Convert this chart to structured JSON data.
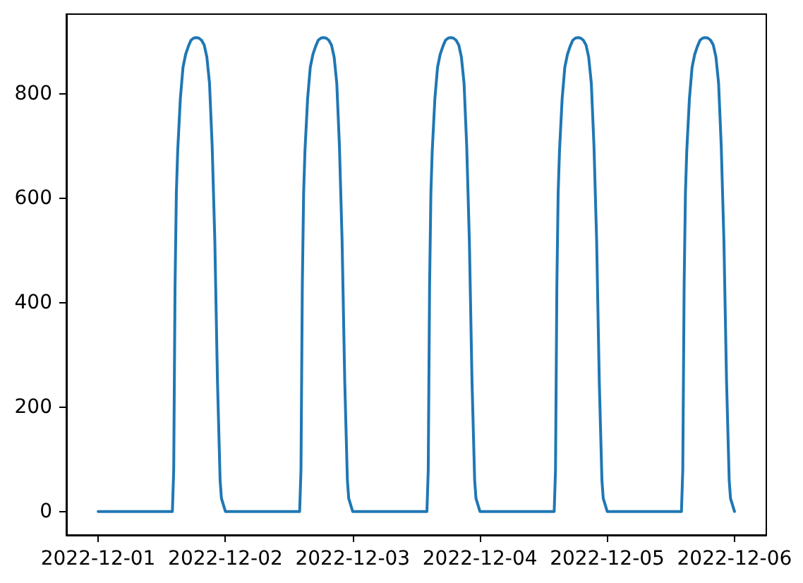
{
  "chart_data": {
    "type": "line",
    "color": "#1f77b4",
    "x": [
      "2022-12-01T00:00",
      "2022-12-01T14:00",
      "2022-12-01T14:15",
      "2022-12-01T14:30",
      "2022-12-01T14:45",
      "2022-12-01T15:00",
      "2022-12-01T15:30",
      "2022-12-01T16:00",
      "2022-12-01T16:30",
      "2022-12-01T17:00",
      "2022-12-01T17:30",
      "2022-12-01T18:00",
      "2022-12-01T18:30",
      "2022-12-01T19:00",
      "2022-12-01T19:30",
      "2022-12-01T20:00",
      "2022-12-01T20:30",
      "2022-12-01T21:00",
      "2022-12-01T21:30",
      "2022-12-01T22:00",
      "2022-12-01T22:30",
      "2022-12-01T23:00",
      "2022-12-01T23:15",
      "2022-12-02T00:00",
      "2022-12-02T14:00",
      "2022-12-02T14:15",
      "2022-12-02T14:30",
      "2022-12-02T14:45",
      "2022-12-02T15:00",
      "2022-12-02T15:30",
      "2022-12-02T16:00",
      "2022-12-02T16:30",
      "2022-12-02T17:00",
      "2022-12-02T17:30",
      "2022-12-02T18:00",
      "2022-12-02T18:30",
      "2022-12-02T19:00",
      "2022-12-02T19:30",
      "2022-12-02T20:00",
      "2022-12-02T20:30",
      "2022-12-02T21:00",
      "2022-12-02T21:30",
      "2022-12-02T22:00",
      "2022-12-02T22:30",
      "2022-12-02T23:00",
      "2022-12-02T23:15",
      "2022-12-03T00:00",
      "2022-12-03T14:00",
      "2022-12-03T14:15",
      "2022-12-03T14:30",
      "2022-12-03T14:45",
      "2022-12-03T15:00",
      "2022-12-03T15:30",
      "2022-12-03T16:00",
      "2022-12-03T16:30",
      "2022-12-03T17:00",
      "2022-12-03T17:30",
      "2022-12-03T18:00",
      "2022-12-03T18:30",
      "2022-12-03T19:00",
      "2022-12-03T19:30",
      "2022-12-03T20:00",
      "2022-12-03T20:30",
      "2022-12-03T21:00",
      "2022-12-03T21:30",
      "2022-12-03T22:00",
      "2022-12-03T22:30",
      "2022-12-03T23:00",
      "2022-12-03T23:15",
      "2022-12-04T00:00",
      "2022-12-04T14:00",
      "2022-12-04T14:15",
      "2022-12-04T14:30",
      "2022-12-04T14:45",
      "2022-12-04T15:00",
      "2022-12-04T15:30",
      "2022-12-04T16:00",
      "2022-12-04T16:30",
      "2022-12-04T17:00",
      "2022-12-04T17:30",
      "2022-12-04T18:00",
      "2022-12-04T18:30",
      "2022-12-04T19:00",
      "2022-12-04T19:30",
      "2022-12-04T20:00",
      "2022-12-04T20:30",
      "2022-12-04T21:00",
      "2022-12-04T21:30",
      "2022-12-04T22:00",
      "2022-12-04T22:30",
      "2022-12-04T23:00",
      "2022-12-04T23:15",
      "2022-12-05T00:00",
      "2022-12-05T14:00",
      "2022-12-05T14:15",
      "2022-12-05T14:30",
      "2022-12-05T14:45",
      "2022-12-05T15:00",
      "2022-12-05T15:30",
      "2022-12-05T16:00",
      "2022-12-05T16:30",
      "2022-12-05T17:00",
      "2022-12-05T17:30",
      "2022-12-05T18:00",
      "2022-12-05T18:30",
      "2022-12-05T19:00",
      "2022-12-05T19:30",
      "2022-12-05T20:00",
      "2022-12-05T20:30",
      "2022-12-05T21:00",
      "2022-12-05T21:30",
      "2022-12-05T22:00",
      "2022-12-05T22:30",
      "2022-12-05T23:00",
      "2022-12-05T23:15",
      "2022-12-06T00:00"
    ],
    "values": [
      0,
      0,
      80,
      430,
      610,
      690,
      790,
      850,
      875,
      890,
      902,
      906,
      907,
      906,
      902,
      893,
      870,
      820,
      700,
      520,
      250,
      60,
      25,
      0,
      0,
      80,
      430,
      610,
      690,
      790,
      850,
      875,
      890,
      902,
      906,
      907,
      906,
      902,
      893,
      870,
      820,
      700,
      520,
      250,
      60,
      25,
      0,
      0,
      80,
      430,
      610,
      690,
      790,
      850,
      875,
      890,
      902,
      906,
      907,
      906,
      902,
      893,
      870,
      820,
      700,
      520,
      250,
      60,
      25,
      0,
      0,
      80,
      430,
      610,
      690,
      790,
      850,
      875,
      890,
      902,
      906,
      907,
      906,
      902,
      893,
      870,
      820,
      700,
      520,
      250,
      60,
      25,
      0,
      0,
      80,
      430,
      610,
      690,
      790,
      850,
      875,
      890,
      902,
      906,
      907,
      906,
      902,
      893,
      870,
      820,
      700,
      520,
      250,
      60,
      25,
      0
    ],
    "xlim": [
      "2022-11-30T18:00",
      "2022-12-06T06:00"
    ],
    "xticks": [
      "2022-12-01",
      "2022-12-02",
      "2022-12-03",
      "2022-12-04",
      "2022-12-05",
      "2022-12-06"
    ],
    "ylim": [
      -45,
      952
    ],
    "yticks": [
      0,
      200,
      400,
      600,
      800
    ],
    "grid": false,
    "marker": "none",
    "line_style": "solid"
  }
}
